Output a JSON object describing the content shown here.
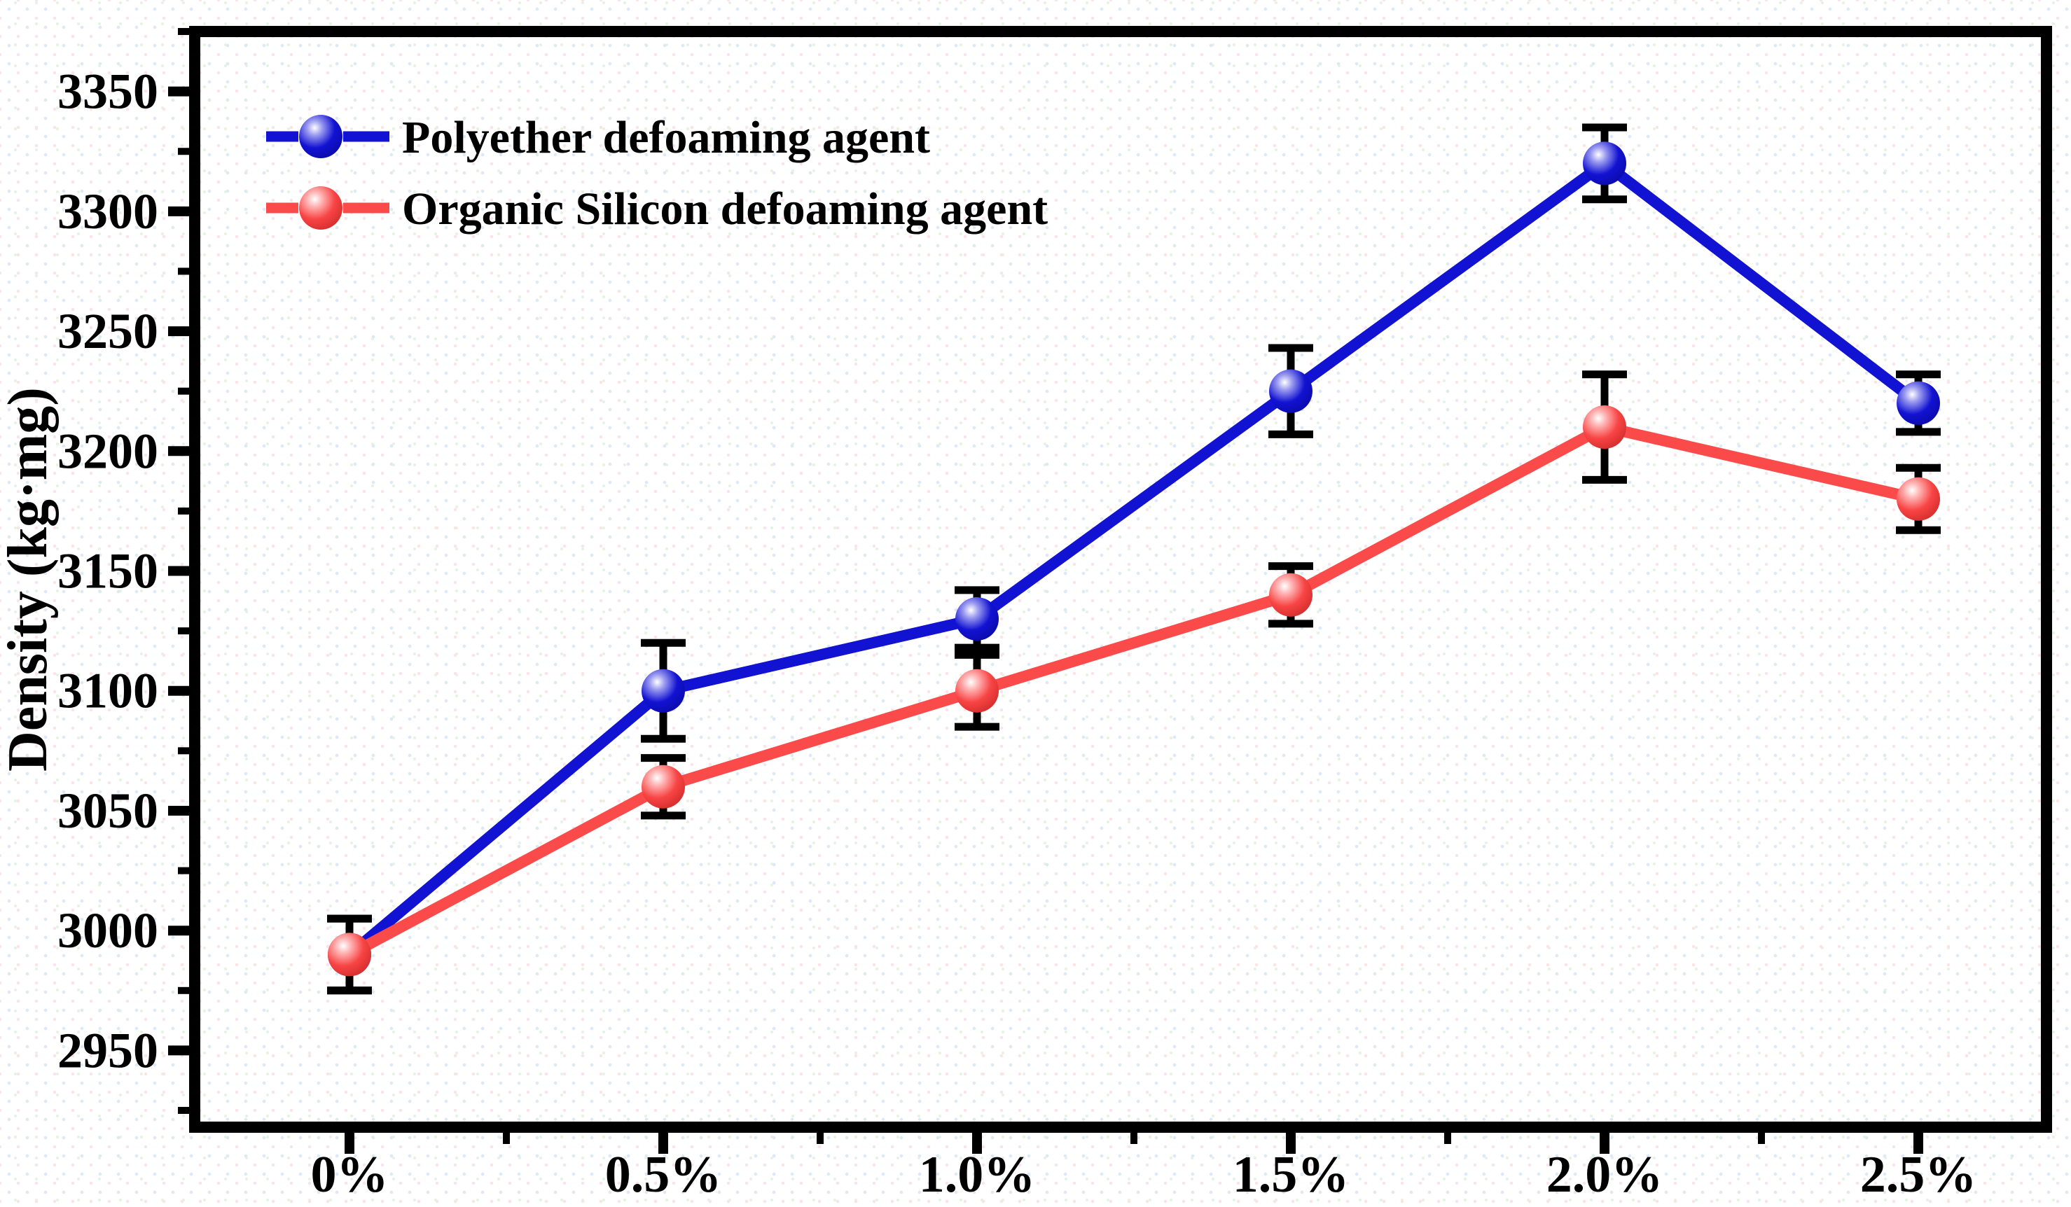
{
  "chart_data": {
    "type": "line",
    "title": "",
    "xlabel": "",
    "ylabel": "Density (kg·mg)",
    "categories": [
      "0%",
      "0.5%",
      "1.0%",
      "1.5%",
      "2.0%",
      "2.5%"
    ],
    "series": [
      {
        "name": "Polyether defoaming agent",
        "color": "#1212d2",
        "marker": "ball",
        "values": [
          2990,
          3100,
          3130,
          3225,
          3320,
          3220
        ],
        "error_bars": [
          15,
          20,
          12,
          18,
          15,
          12
        ]
      },
      {
        "name": "Organic Silicon defoaming agent",
        "color": "#fa4a4a",
        "marker": "ball",
        "values": [
          2990,
          3060,
          3100,
          3140,
          3210,
          3180
        ],
        "error_bars": [
          15,
          12,
          15,
          12,
          22,
          13
        ]
      }
    ],
    "yticks": [
      2950,
      3000,
      3050,
      3100,
      3150,
      3200,
      3250,
      3300,
      3350
    ],
    "ylim": [
      2918,
      3375
    ],
    "y_minor_step": 25,
    "grid": false,
    "legend_position": "top-left",
    "error_bar_color": "#000000",
    "frame_color": "#000000"
  }
}
